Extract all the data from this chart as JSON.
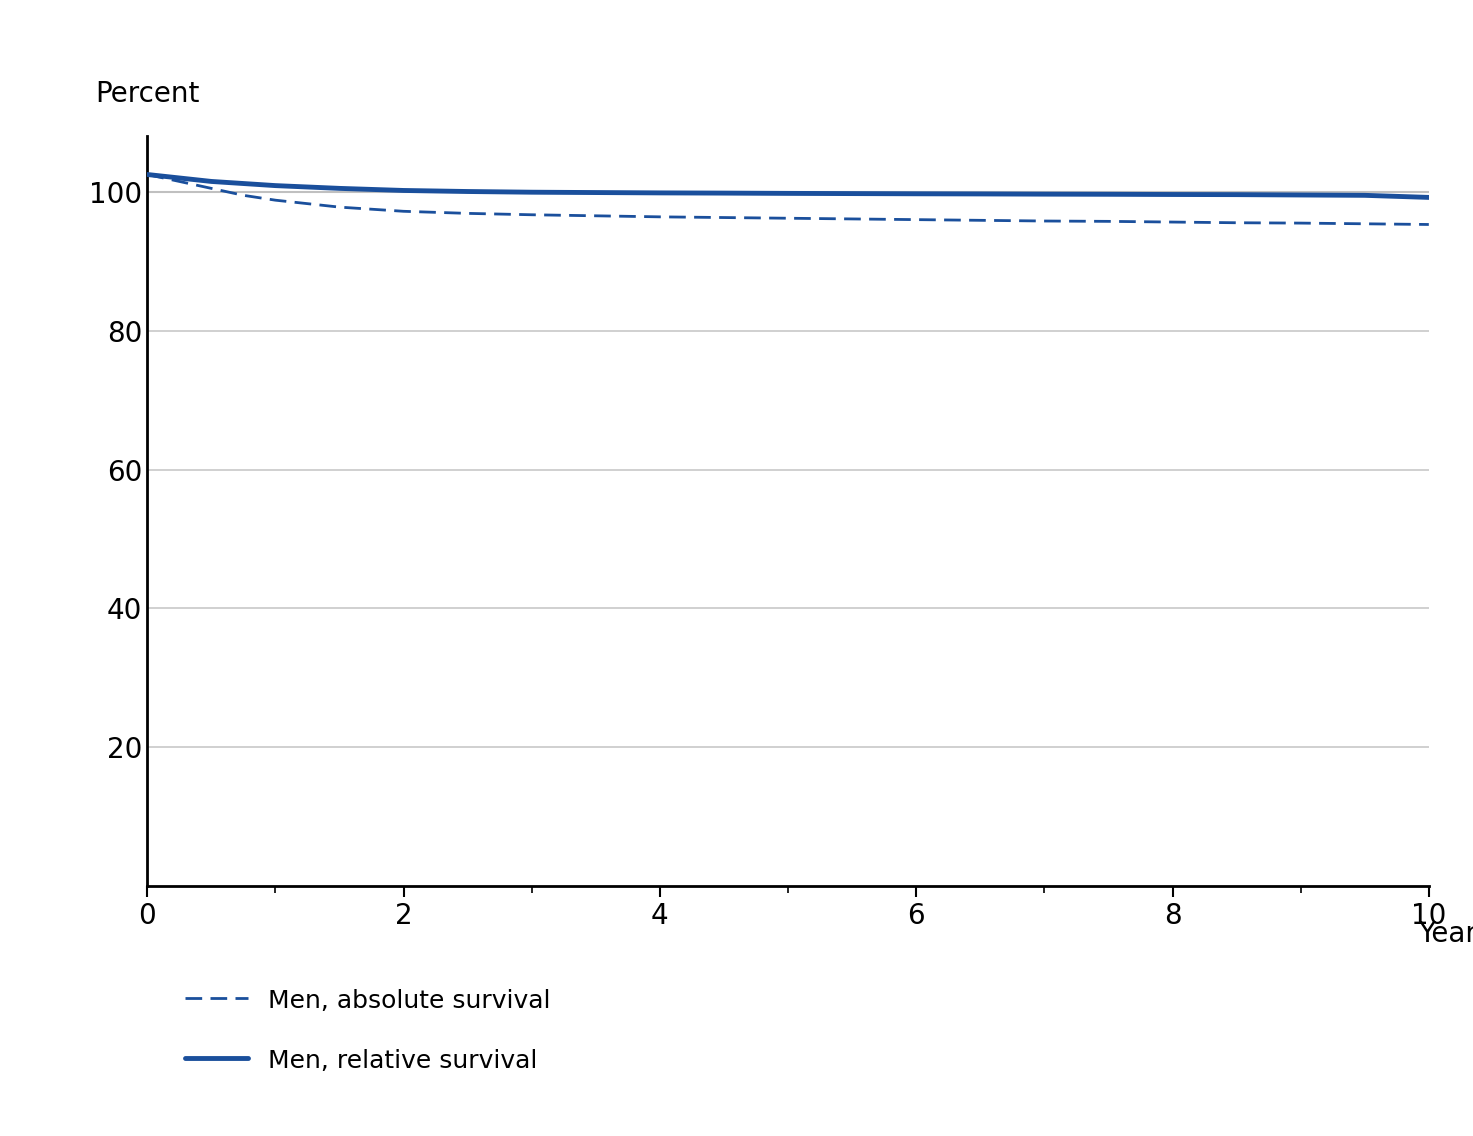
{
  "ylabel": "Percent",
  "xlabel": "Years",
  "ylim": [
    0,
    108
  ],
  "xlim": [
    0,
    10
  ],
  "yticks": [
    20,
    40,
    60,
    80,
    100
  ],
  "xticks": [
    0,
    2,
    4,
    6,
    8,
    10
  ],
  "background_color": "#ffffff",
  "grid_color": "#c8c8c8",
  "line_color": "#1a4f9c",
  "relative_survival": {
    "x": [
      0,
      0.25,
      0.5,
      0.75,
      1.0,
      1.5,
      2.0,
      2.5,
      3.0,
      3.5,
      4.0,
      4.5,
      5.0,
      5.5,
      6.0,
      6.5,
      7.0,
      7.5,
      8.0,
      8.5,
      9.0,
      9.5,
      10.0
    ],
    "y": [
      102.5,
      102.0,
      101.5,
      101.2,
      100.9,
      100.5,
      100.2,
      100.05,
      99.95,
      99.9,
      99.85,
      99.82,
      99.78,
      99.75,
      99.72,
      99.7,
      99.67,
      99.65,
      99.62,
      99.6,
      99.55,
      99.5,
      99.2
    ],
    "label": "Men, relative survival",
    "linestyle": "solid",
    "linewidth": 3.5
  },
  "absolute_survival": {
    "x": [
      0,
      0.25,
      0.5,
      0.75,
      1.0,
      1.5,
      2.0,
      2.5,
      3.0,
      3.5,
      4.0,
      4.5,
      5.0,
      5.5,
      6.0,
      6.5,
      7.0,
      7.5,
      8.0,
      8.5,
      9.0,
      9.5,
      10.0
    ],
    "y": [
      102.5,
      101.5,
      100.5,
      99.5,
      98.8,
      97.8,
      97.2,
      96.9,
      96.7,
      96.55,
      96.4,
      96.3,
      96.2,
      96.1,
      96.0,
      95.9,
      95.8,
      95.75,
      95.65,
      95.55,
      95.5,
      95.4,
      95.3
    ],
    "label": "Men, absolute survival",
    "linestyle": "dashed",
    "linewidth": 2.0
  },
  "reference_line": {
    "y": 100,
    "color": "#c0c0c0",
    "linewidth": 1.5
  },
  "percent_label_fontsize": 20,
  "xlabel_fontsize": 20,
  "tick_fontsize": 20,
  "legend_fontsize": 18
}
